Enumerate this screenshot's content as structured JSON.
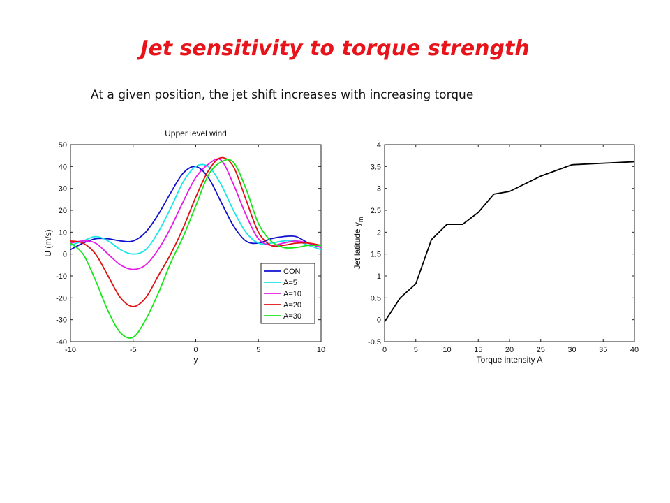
{
  "page": {
    "title": "Jet sensitivity to torque strength",
    "subtitle": "At a given position, the jet shift increases with increasing torque"
  },
  "chart_data": [
    {
      "type": "line",
      "title": "Upper level wind",
      "xlabel": "y",
      "ylabel": "U (m/s)",
      "xlim": [
        -10,
        10
      ],
      "ylim": [
        -40,
        50
      ],
      "xticks": [
        -10,
        -5,
        0,
        5,
        10
      ],
      "yticks": [
        -40,
        -30,
        -20,
        -10,
        0,
        10,
        20,
        30,
        40,
        50
      ],
      "grid": false,
      "legend_position": "bottom-right",
      "series": [
        {
          "name": "CON",
          "color": "#1010d0",
          "x": [
            -10,
            -9,
            -8,
            -7,
            -6,
            -5,
            -4,
            -3,
            -2,
            -1,
            0,
            1,
            2,
            3,
            4,
            5,
            6,
            7,
            8,
            9,
            10
          ],
          "y": [
            2,
            5,
            7,
            7,
            6,
            6,
            10,
            18,
            28,
            37,
            40,
            35,
            24,
            13,
            6,
            5,
            7,
            8,
            8,
            5,
            3
          ]
        },
        {
          "name": "A=5",
          "color": "#19e6e6",
          "x": [
            -10,
            -9,
            -8,
            -7,
            -6,
            -5,
            -4,
            -3,
            -2,
            -1,
            0,
            1,
            2,
            3,
            4,
            5,
            6,
            7,
            8,
            9,
            10
          ],
          "y": [
            4,
            6,
            8,
            6,
            2,
            0,
            2,
            10,
            21,
            33,
            40,
            40,
            32,
            20,
            10,
            5,
            5,
            6,
            6,
            4,
            2
          ]
        },
        {
          "name": "A=10",
          "color": "#e619e6",
          "x": [
            -10,
            -9,
            -8,
            -7,
            -6,
            -5,
            -4,
            -3,
            -2,
            -1,
            0,
            1,
            2,
            3,
            4,
            5,
            6,
            7,
            8,
            9,
            10
          ],
          "y": [
            5,
            6,
            5,
            0,
            -5,
            -7,
            -5,
            2,
            12,
            24,
            35,
            41,
            43,
            32,
            18,
            7,
            4,
            5,
            6,
            5,
            3
          ]
        },
        {
          "name": "A=20",
          "color": "#e01010",
          "x": [
            -10,
            -9,
            -8,
            -7,
            -6,
            -5,
            -4,
            -3,
            -2,
            -1,
            0,
            1,
            2,
            3,
            4,
            5,
            6,
            7,
            8,
            9,
            10
          ],
          "y": [
            6,
            5,
            0,
            -10,
            -20,
            -24,
            -20,
            -10,
            0,
            12,
            26,
            38,
            44,
            40,
            25,
            10,
            4,
            4,
            5,
            5,
            4
          ]
        },
        {
          "name": "A=30",
          "color": "#19e619",
          "x": [
            -10,
            -9,
            -8,
            -7,
            -6,
            -5,
            -4,
            -3,
            -2,
            -1,
            0,
            1,
            2,
            3,
            4,
            5,
            6,
            7,
            8,
            9,
            10
          ],
          "y": [
            5,
            0,
            -12,
            -26,
            -36,
            -38,
            -30,
            -18,
            -4,
            8,
            22,
            36,
            42,
            42,
            30,
            14,
            6,
            3,
            3,
            4,
            4
          ]
        }
      ]
    },
    {
      "type": "line",
      "title": "",
      "xlabel": "Torque intensity A",
      "ylabel": "Jet latitude y",
      "ylabel_sub": "m",
      "xlim": [
        0,
        40
      ],
      "ylim": [
        -0.5,
        4
      ],
      "xticks": [
        0,
        5,
        10,
        15,
        20,
        25,
        30,
        35,
        40
      ],
      "yticks": [
        -0.5,
        0,
        0.5,
        1,
        1.5,
        2,
        2.5,
        3,
        3.5,
        4
      ],
      "grid": false,
      "series": [
        {
          "color": "#000000",
          "x": [
            0,
            2.5,
            5,
            7.5,
            10,
            12.5,
            15,
            17.5,
            20,
            25,
            30,
            40
          ],
          "y": [
            -0.05,
            0.5,
            0.82,
            1.83,
            2.18,
            2.18,
            2.45,
            2.87,
            2.93,
            3.28,
            3.54,
            3.61
          ]
        }
      ]
    }
  ]
}
